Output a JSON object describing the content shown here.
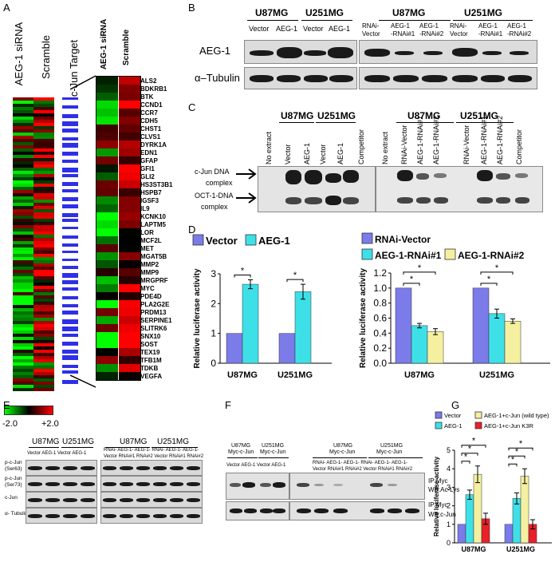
{
  "panels": {
    "A": "A",
    "B": "B",
    "C": "C",
    "D": "D",
    "E": "E",
    "F": "F",
    "G": "G"
  },
  "panelA": {
    "col1": "AEG-1 siRNA",
    "col2": "Scramble",
    "col3": "c-Jun Target",
    "zoom_col1": "AEG-1 siRNA",
    "zoom_col2": "Scramble",
    "scale_min": "-2.0",
    "scale_max": "+2.0",
    "genes": [
      "ALS2",
      "BDKRB1",
      "BTK",
      "CCND1",
      "CCR7",
      "CDH5",
      "CHST1",
      "CLVS1",
      "DYRK1A",
      "EDN1",
      "GFAP",
      "GFI1",
      "GLI2",
      "HS3ST3B1",
      "HSPB7",
      "IGSF3",
      "IL9",
      "KCNK10",
      "LAPTM5",
      "LOR",
      "MCF2L",
      "MET",
      "MGAT5B",
      "MMP2",
      "MMP9",
      "MRGPRF",
      "MYC",
      "PDE4D",
      "PLA2G2E",
      "PRDM13",
      "SERPINE1",
      "SLITRK6",
      "SNX10",
      "SOST",
      "TEX19",
      "TFB1M",
      "TDKB",
      "VEGFA"
    ]
  },
  "panelB": {
    "group1": "U87MG",
    "group2": "U251MG",
    "group3": "U87MG",
    "group4": "U251MG",
    "lanes_left": [
      "Vector",
      "AEG-1",
      "Vector",
      "AEG-1"
    ],
    "lanes_right": [
      "RNAi-\nVector",
      "AEG-1\n-RNAi#1",
      "AEG-1\n-RNAi#2",
      "RNAi-\nVector",
      "AEG-1\n-RNAi#1",
      "AEG-1\n-RNAi#2"
    ],
    "row1": "AEG-1",
    "row2": "α–Tubulin"
  },
  "panelC": {
    "group1": "U87MG",
    "group2": "U251MG",
    "group3": "U87MG",
    "group4": "U251MG",
    "lanes_left": [
      "No extract",
      "Vector",
      "AEG-1",
      "Vector",
      "AEG-1",
      "Competitor"
    ],
    "lanes_right": [
      "No extract",
      "RNAi-Vector",
      "AEG-1-RNAi#1",
      "AEG-1-RNAi#2",
      "RNAi-Vector",
      "AEG-1-RNAi#1",
      "AEG-1-RNAi#2",
      "Competitor"
    ],
    "row1a": "c-Jun DNA",
    "row1b": "complex",
    "row2a": "OCT-1-DNA",
    "row2b": "complex"
  },
  "panelE": {
    "group1": "U87MG",
    "group2": "U251MG",
    "group3": "U87MG",
    "group4": "U251MG",
    "lanes_left": "Vector  AEG-1  Vector  AEG-1",
    "lanes_right1": "RNAi-  AEG-1-  AEG-1-  RNAi-  AEG-1-  AEG-1-",
    "lanes_right2": "Vector RNAi#1 RNAi#2 Vector RNAi#1 RNAi#2",
    "rows": [
      "p-c-Jun\n(Ser63)",
      "p-c-Jun\n(Ser73)",
      "c-Jun",
      "α- Tubulin"
    ]
  },
  "panelF": {
    "g1a": "U87MG",
    "g1b": "Myc-c-Jun",
    "g2a": "U251MG",
    "g2b": "Myc-c-Jun",
    "g3a": "U87MG",
    "g3b": "Myc-c-Jun",
    "g4a": "U251MG",
    "g4b": "Myc-c-Jun",
    "lanes_left": "Vector AEG-1  Vector AEG-1",
    "lanes_right1": "RNAi- AEG-1- AEG-1-   RNAi- AEG-1- AEG-1-",
    "lanes_right2": "Vector RNAi#1 RNAi#2  Vector RNAi#1 RNAi#2",
    "row1a": "IP:Myc",
    "row1b": "WB:Ac-Lys",
    "row2a": "IP:Myc",
    "row2b": "WB:c-Jun"
  },
  "chart_data": [
    {
      "type": "bar",
      "panel": "D-left",
      "categories": [
        "U87MG",
        "U251MG"
      ],
      "series": [
        {
          "name": "Vector",
          "values": [
            1.0,
            1.0
          ],
          "errors": [
            0,
            0
          ],
          "color": "#7b7bea"
        },
        {
          "name": "AEG-1",
          "values": [
            2.65,
            2.4
          ],
          "errors": [
            0.15,
            0.25
          ],
          "color": "#3ee0e8"
        }
      ],
      "ylabel": "Relative luciferase activity",
      "ylim": [
        0,
        3
      ],
      "yticks": [
        "0",
        "1",
        "2",
        "3"
      ],
      "significance": [
        "*",
        "*"
      ]
    },
    {
      "type": "bar",
      "panel": "D-right",
      "categories": [
        "U87MG",
        "U251MG"
      ],
      "series": [
        {
          "name": "RNAi-Vector",
          "values": [
            1.0,
            1.0
          ],
          "errors": [
            0,
            0
          ],
          "color": "#7b7bea"
        },
        {
          "name": "AEG-1-RNAi#1",
          "values": [
            0.5,
            0.66
          ],
          "errors": [
            0.03,
            0.06
          ],
          "color": "#3ee0e8"
        },
        {
          "name": "AEG-1-RNAi#2",
          "values": [
            0.42,
            0.56
          ],
          "errors": [
            0.04,
            0.03
          ],
          "color": "#f5f0a0"
        }
      ],
      "ylabel": "Relative luciferase activity",
      "ylim": [
        0,
        1.2
      ],
      "yticks": [
        "0.0",
        "0.2",
        "0.4",
        "0.6",
        "0.8",
        "1.0",
        "1.2"
      ],
      "significance": [
        "*",
        "*",
        "*",
        "*"
      ]
    },
    {
      "type": "bar",
      "panel": "G",
      "categories": [
        "U87MG",
        "U251MG"
      ],
      "series": [
        {
          "name": "Vector",
          "values": [
            1.0,
            1.0
          ],
          "errors": [
            0,
            0
          ],
          "color": "#7b7bea"
        },
        {
          "name": "AEG-1",
          "values": [
            2.6,
            2.4
          ],
          "errors": [
            0.25,
            0.3
          ],
          "color": "#3ee0e8"
        },
        {
          "name": "AEG-1+c-Jun (wild type)",
          "values": [
            3.7,
            3.6
          ],
          "errors": [
            0.45,
            0.4
          ],
          "color": "#f5f0a0"
        },
        {
          "name": "AEG-1+c-Jun K3R",
          "values": [
            1.3,
            1.0
          ],
          "errors": [
            0.3,
            0.25
          ],
          "color": "#e8202a"
        }
      ],
      "ylabel": "Relative luciferase activity",
      "ylim": [
        0,
        5
      ],
      "yticks": [
        "0",
        "1",
        "2",
        "3",
        "4",
        "5"
      ],
      "significance": [
        "*",
        "*",
        "*",
        "*",
        "*",
        "*"
      ]
    }
  ]
}
